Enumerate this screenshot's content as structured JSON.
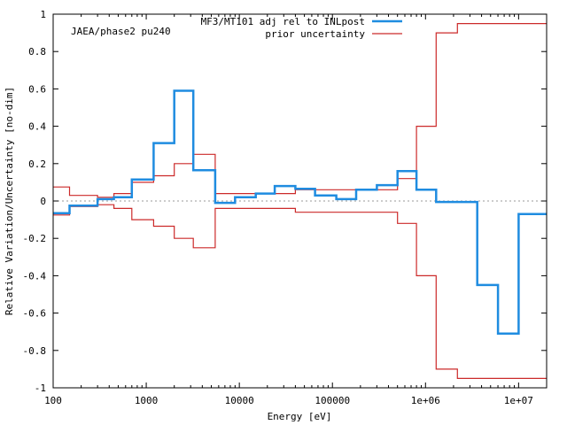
{
  "chart_data": {
    "type": "line",
    "step": true,
    "xscale": "log",
    "annotation": "JAEA/phase2 pu240",
    "xlabel": "Energy [eV]",
    "ylabel": "Relative Variation/Uncertainty [no-dim]",
    "xlim": [
      100,
      20000000
    ],
    "ylim": [
      -1,
      1
    ],
    "xticks": [
      100,
      1000,
      10000,
      100000,
      1000000,
      10000000
    ],
    "xtick_labels": [
      "100",
      "1000",
      "10000",
      "100000",
      "1e+06",
      "1e+07"
    ],
    "yticks": [
      -1,
      -0.8,
      -0.6,
      -0.4,
      -0.2,
      0,
      0.2,
      0.4,
      0.6,
      0.8,
      1
    ],
    "ytick_labels": [
      "-1",
      "-0.8",
      "-0.6",
      "-0.4",
      "-0.2",
      "0",
      "0.2",
      "0.4",
      "0.6",
      "0.8",
      "1"
    ],
    "legend_position": "top-right",
    "bin_edges": [
      100,
      150,
      300,
      450,
      700,
      1200,
      2000,
      3200,
      5500,
      9000,
      15000,
      24000,
      40000,
      65000,
      110000,
      180000,
      300000,
      500000,
      800000,
      1300000,
      2200000,
      3600000,
      6000000,
      10000000,
      20000000
    ],
    "series": [
      {
        "name": "MF3/MT101 adj rel to INLpost",
        "color": "#1f8ce0",
        "values": [
          -0.065,
          -0.025,
          0.01,
          0.02,
          0.115,
          0.31,
          0.59,
          0.165,
          -0.01,
          0.02,
          0.04,
          0.08,
          0.065,
          0.03,
          0.01,
          0.06,
          0.085,
          0.16,
          0.06,
          -0.005,
          -0.005,
          -0.45,
          -0.71,
          -0.07
        ]
      },
      {
        "name": "prior uncertainty",
        "color": "#cc2a2a",
        "values": [
          0.075,
          0.03,
          0.02,
          0.04,
          0.1,
          0.135,
          0.2,
          0.25,
          0.04,
          0.04,
          0.04,
          0.04,
          0.06,
          0.06,
          0.06,
          0.06,
          0.06,
          0.12,
          0.4,
          0.9,
          0.95,
          0.95,
          0.95,
          0.95
        ],
        "mirrored": true
      }
    ]
  }
}
